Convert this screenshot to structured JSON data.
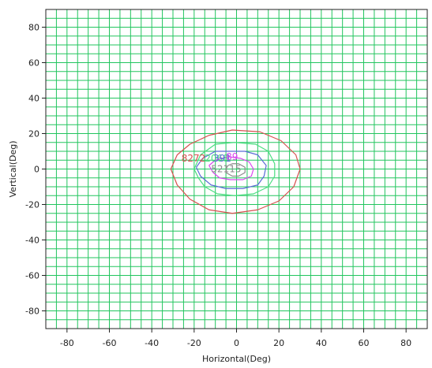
{
  "chart_data": {
    "type": "contour",
    "xlabel": "Horizontal(Deg)",
    "ylabel": "Vertical(Deg)",
    "xlim": [
      -90,
      90
    ],
    "ylim": [
      -90,
      90
    ],
    "xticks": [
      -80,
      -60,
      -40,
      -20,
      0,
      20,
      40,
      60,
      80
    ],
    "yticks": [
      -80,
      -60,
      -40,
      -20,
      0,
      20,
      40,
      60,
      80
    ],
    "grid": true,
    "grid_color": "#22c55e",
    "grid_step": 5,
    "contours": [
      {
        "color": "#d94f4f",
        "label": "8272",
        "label_x": -26,
        "label_y": 6,
        "points": [
          [
            -31,
            0
          ],
          [
            -28,
            8
          ],
          [
            -22,
            14
          ],
          [
            -13,
            19
          ],
          [
            -2,
            22
          ],
          [
            11,
            21
          ],
          [
            21,
            16
          ],
          [
            28,
            8
          ],
          [
            30,
            0
          ],
          [
            27,
            -10
          ],
          [
            20,
            -18
          ],
          [
            10,
            -23
          ],
          [
            -2,
            -25
          ],
          [
            -13,
            -23
          ],
          [
            -22,
            -17
          ],
          [
            -28,
            -9
          ],
          [
            -31,
            0
          ]
        ]
      },
      {
        "color": "#4ade80",
        "label": "2068",
        "label_x": -15,
        "label_y": 6,
        "points": [
          [
            -20,
            0
          ],
          [
            -17,
            8
          ],
          [
            -10,
            14
          ],
          [
            -1,
            15
          ],
          [
            9,
            14
          ],
          [
            15,
            10
          ],
          [
            18,
            3
          ],
          [
            18,
            -4
          ],
          [
            15,
            -10
          ],
          [
            8,
            -14
          ],
          [
            -1,
            -15
          ],
          [
            -9,
            -14
          ],
          [
            -15,
            -10
          ],
          [
            -18,
            -5
          ],
          [
            -20,
            0
          ]
        ]
      },
      {
        "color": "#5b6cd6",
        "label": "391",
        "label_x": -11,
        "label_y": 6,
        "points": [
          [
            -19,
            1
          ],
          [
            -16,
            6
          ],
          [
            -10,
            10
          ],
          [
            -3,
            10
          ],
          [
            4,
            10
          ],
          [
            10,
            8
          ],
          [
            14,
            2
          ],
          [
            13,
            -4
          ],
          [
            10,
            -9
          ],
          [
            3,
            -11
          ],
          [
            -5,
            -11
          ],
          [
            -12,
            -9
          ],
          [
            -17,
            -4
          ],
          [
            -19,
            1
          ]
        ]
      },
      {
        "color": "#d946ef",
        "label": "89",
        "label_x": -5,
        "label_y": 7,
        "points": [
          [
            -13,
            2
          ],
          [
            -10,
            5
          ],
          [
            -4,
            7
          ],
          [
            2,
            6
          ],
          [
            6,
            4
          ],
          [
            8,
            0
          ],
          [
            7,
            -4
          ],
          [
            3,
            -6
          ],
          [
            -3,
            -6
          ],
          [
            -8,
            -5
          ],
          [
            -11,
            -2
          ],
          [
            -13,
            2
          ]
        ]
      },
      {
        "color": "#8b8b8b",
        "label": "52115",
        "label_x": -12,
        "label_y": 0,
        "points": [
          [
            -5,
            0
          ],
          [
            -4,
            2
          ],
          [
            -2,
            3
          ],
          [
            1,
            3
          ],
          [
            4,
            1
          ],
          [
            4,
            -2
          ],
          [
            1,
            -4
          ],
          [
            -2,
            -4
          ],
          [
            -5,
            -2
          ],
          [
            -5,
            0
          ]
        ]
      }
    ]
  }
}
